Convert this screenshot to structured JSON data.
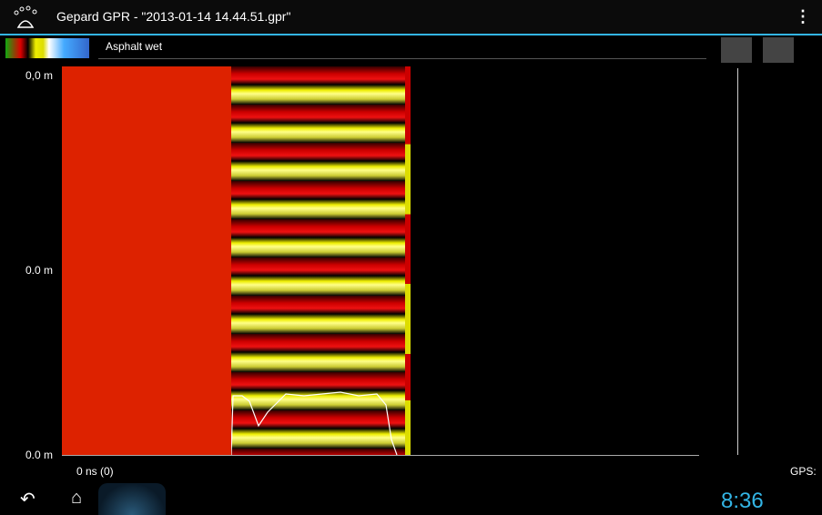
{
  "header": {
    "title": "Gepard GPR - \"2013-01-14 14.44.51.gpr\""
  },
  "toolbar": {
    "material": "Asphalt wet"
  },
  "plot": {
    "y_labels": [
      "0,0 m",
      "0.0 m",
      "0.0 m"
    ],
    "x_label": "0 ns  (0)",
    "gps": "GPS: -"
  },
  "statusbar": {
    "clock": "8:36"
  }
}
